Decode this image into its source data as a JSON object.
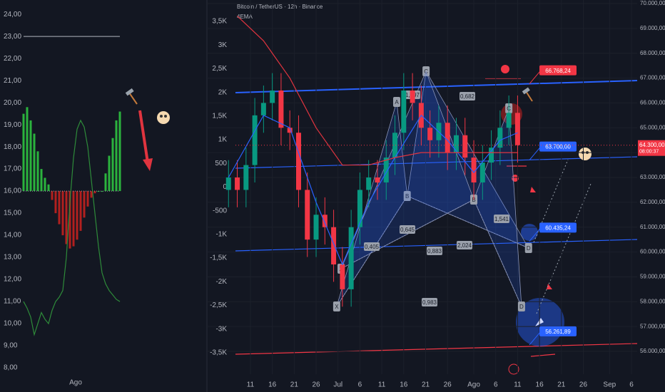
{
  "chart_data": [
    {
      "type": "oscillator",
      "values": [
        19.5,
        19.8,
        19.2,
        18.6,
        17.8,
        17.0,
        16.6,
        16.3,
        15.6,
        15.0,
        14.5,
        14.0,
        13.6,
        13.4,
        13.5,
        13.8,
        14.2,
        14.8,
        15.3,
        15.7,
        15.9,
        16.0,
        16.0,
        16.8,
        17.6,
        18.4,
        19.2,
        19.6
      ],
      "line_values": [
        11.0,
        10.7,
        10.3,
        9.5,
        10.0,
        10.5,
        10.2,
        10.0,
        10.6,
        11.0,
        11.2,
        11.5,
        13.0,
        15.5,
        17.5,
        18.8,
        19.2,
        18.9,
        18.0,
        16.5,
        15.0,
        13.5,
        12.3,
        11.8,
        11.5,
        11.3,
        11.1,
        11.0
      ],
      "bar_base": 16,
      "hline": 23,
      "up_color": "#2bb33d",
      "down_color": "#b2201f",
      "line_color": "#2e8b3a",
      "xlim": [
        -6.6,
        51.4
      ],
      "xticks": [
        {
          "value": 14.6,
          "label": "Ago"
        }
      ],
      "ylim": [
        7.55,
        24.65
      ],
      "yticks": [
        {
          "value": 8,
          "label": "8,00"
        },
        {
          "value": 9,
          "label": "9,00"
        },
        {
          "value": 10,
          "label": "10,00"
        },
        {
          "value": 11,
          "label": "11,00"
        },
        {
          "value": 12,
          "label": "12,00"
        },
        {
          "value": 13,
          "label": "13,00"
        },
        {
          "value": 14,
          "label": "14,00"
        },
        {
          "value": 15,
          "label": "15,00"
        },
        {
          "value": 16,
          "label": "16,00"
        },
        {
          "value": 17,
          "label": "17,00"
        },
        {
          "value": 18,
          "label": "18,00"
        },
        {
          "value": 19,
          "label": "19,00"
        },
        {
          "value": 20,
          "label": "20,00"
        },
        {
          "value": 21,
          "label": "21,00"
        },
        {
          "value": 22,
          "label": "22,00"
        },
        {
          "value": 23,
          "label": "23,00"
        },
        {
          "value": 24,
          "label": "24,00"
        }
      ]
    },
    {
      "type": "candlestick",
      "title": "Bitcoin / TetherUS · 12h · Binance",
      "x": [
        6,
        8,
        10,
        12,
        14,
        16,
        18,
        20,
        22,
        24,
        26,
        28,
        30,
        32,
        34,
        36,
        38,
        40,
        42,
        44,
        46,
        48,
        50,
        52,
        54,
        56,
        58,
        60,
        62,
        64,
        66,
        68,
        70,
        72
      ],
      "open": [
        62500,
        63000,
        62500,
        63500,
        65500,
        66000,
        66500,
        65000,
        64800,
        62500,
        60500,
        61500,
        61000,
        59500,
        58500,
        61000,
        62500,
        63000,
        62800,
        63800,
        64800,
        66500,
        66000,
        65000,
        64500,
        65200,
        64000,
        64700,
        63800,
        62800,
        63600,
        64200,
        65000,
        65600
      ],
      "high": [
        63700,
        63700,
        64200,
        66200,
        66700,
        67200,
        67200,
        65700,
        65500,
        63200,
        62200,
        62200,
        61700,
        60200,
        61700,
        63200,
        63700,
        63700,
        64500,
        65500,
        67200,
        67200,
        66700,
        65700,
        65900,
        65900,
        65400,
        65400,
        64500,
        64300,
        64900,
        65700,
        66300,
        66300
      ],
      "low": [
        61800,
        61800,
        61800,
        62800,
        64800,
        65300,
        64300,
        64100,
        61800,
        59800,
        59800,
        60300,
        58800,
        57800,
        57800,
        60300,
        61800,
        62100,
        62100,
        63100,
        64100,
        65300,
        64300,
        63800,
        63800,
        63300,
        63300,
        63100,
        62100,
        62100,
        62900,
        63500,
        64300,
        63600
      ],
      "close": [
        63000,
        62500,
        63500,
        65500,
        66000,
        66500,
        65000,
        64800,
        62500,
        60500,
        61500,
        61000,
        59500,
        58500,
        61000,
        62500,
        63000,
        62800,
        63800,
        64800,
        66500,
        66000,
        65000,
        64500,
        65200,
        64000,
        64700,
        63800,
        62800,
        63600,
        64200,
        65000,
        65600,
        64300
      ],
      "up_color": "#089981",
      "down_color": "#f23645",
      "series": [
        {
          "name": "4EMA",
          "color": "#2962ff",
          "x": [
            6,
            14,
            20,
            26,
            32,
            38,
            44,
            50,
            56,
            62,
            68,
            72
          ],
          "values": [
            63000,
            65500,
            65000,
            62000,
            59500,
            62000,
            63800,
            65500,
            64500,
            63200,
            64500,
            64800
          ]
        },
        {
          "name": null,
          "color": "#e0343f",
          "x": [
            8,
            14,
            20,
            26,
            32,
            38,
            44,
            50,
            56,
            62,
            68,
            72
          ],
          "values": [
            69500,
            68500,
            67000,
            65000,
            63500,
            63500,
            63800,
            64000,
            64000,
            64000,
            64000,
            64000
          ]
        }
      ],
      "patterns": [
        {
          "points": [
            {
              "label": "X",
              "x": 30.7,
              "y": 57808
            },
            {
              "label": "A",
              "x": 44.4,
              "y": 66041
            },
            {
              "label": "B",
              "x": 46.8,
              "y": 62255
            },
            {
              "label": "C",
              "x": 51.1,
              "y": 67275
            },
            {
              "label": "D",
              "x": 74.5,
              "y": 60161
            }
          ]
        },
        {
          "points": [
            {
              "label": "X",
              "x": 31.7,
              "y": 59329
            },
            {
              "label": null,
              "x": 51.1,
              "y": 67275
            },
            {
              "label": "B",
              "x": 62.0,
              "y": 62111
            },
            {
              "label": "C",
              "x": 70.0,
              "y": 65783
            },
            {
              "label": "D",
              "x": 72.9,
              "y": 57808
            }
          ]
        }
      ],
      "ratio_labels": [
        "1,397",
        "0,682",
        "0,645",
        "0,405",
        "0,883",
        "2,024",
        "1,541",
        "0,983"
      ],
      "levels": [
        {
          "value": 66768.24,
          "label": "66.768,24",
          "color": "#f23645"
        },
        {
          "value": 63700,
          "label": "63.700,00",
          "color": "#2962ff"
        },
        {
          "value": 60435.24,
          "label": "60.435,24",
          "color": "#2962ff"
        },
        {
          "value": 56261.89,
          "label": "56.261,89",
          "color": "#2962ff"
        }
      ],
      "last_price": {
        "value": 64300,
        "label": "64.300,00",
        "countdown": "08:00:37"
      },
      "grid": true,
      "xlim": [
        1.07,
        99.3
      ],
      "xticks": [
        11,
        16,
        21,
        26,
        {
          "value": 31,
          "label": "Jul"
        },
        {
          "value": 36,
          "label": "6"
        },
        {
          "value": 41,
          "label": "11"
        },
        {
          "value": 46,
          "label": "16"
        },
        {
          "value": 51,
          "label": "21"
        },
        {
          "value": 56,
          "label": "26"
        },
        {
          "value": 62,
          "label": "Ago"
        },
        {
          "value": 67,
          "label": "6"
        },
        {
          "value": 72,
          "label": "11"
        },
        {
          "value": 77,
          "label": "16"
        },
        {
          "value": 82,
          "label": "21"
        },
        {
          "value": 87,
          "label": "26"
        },
        {
          "value": 93,
          "label": "Sep"
        },
        {
          "value": 98,
          "label": "6"
        }
      ],
      "ylim": [
        55083,
        70143
      ],
      "yticks": [
        {
          "value": 56000,
          "label": "56.000,00"
        },
        {
          "value": 57000,
          "label": "57.000,00"
        },
        {
          "value": 58000,
          "label": "58.000,00"
        },
        {
          "value": 59000,
          "label": "59.000,00"
        },
        {
          "value": 60000,
          "label": "60.000,00"
        },
        {
          "value": 61000,
          "label": "61.000,00"
        },
        {
          "value": 62000,
          "label": "62.000,00"
        },
        {
          "value": 63000,
          "label": "63.000,00"
        },
        {
          "value": 64000,
          "label": "64.000,00"
        },
        {
          "value": 65000,
          "label": "65.000,00"
        },
        {
          "value": 66000,
          "label": "66.000,00"
        },
        {
          "value": 67000,
          "label": "67.000,00"
        },
        {
          "value": 68000,
          "label": "68.000,00"
        },
        {
          "value": 69000,
          "label": "69.000,00"
        },
        {
          "value": 70000,
          "label": "70.000,00"
        }
      ],
      "y2lim": [
        -3953,
        3953
      ],
      "y2ticks": [
        {
          "value": 3500,
          "label": "3,5K"
        },
        {
          "value": 3000,
          "label": "3K"
        },
        {
          "value": 2500,
          "label": "2,5K"
        },
        {
          "value": 2000,
          "label": "2K"
        },
        {
          "value": 1500,
          "label": "1,5K"
        },
        {
          "value": 1000,
          "label": "1K"
        },
        500,
        0,
        -500,
        {
          "value": -1000,
          "label": "-1K"
        },
        {
          "value": -1500,
          "label": "-1,5K"
        },
        {
          "value": -2000,
          "label": "-2K"
        },
        {
          "value": -2500,
          "label": "-2,5K"
        },
        {
          "value": -3000,
          "label": "-3K"
        },
        {
          "value": -3500,
          "label": "-3,5K"
        }
      ]
    }
  ]
}
